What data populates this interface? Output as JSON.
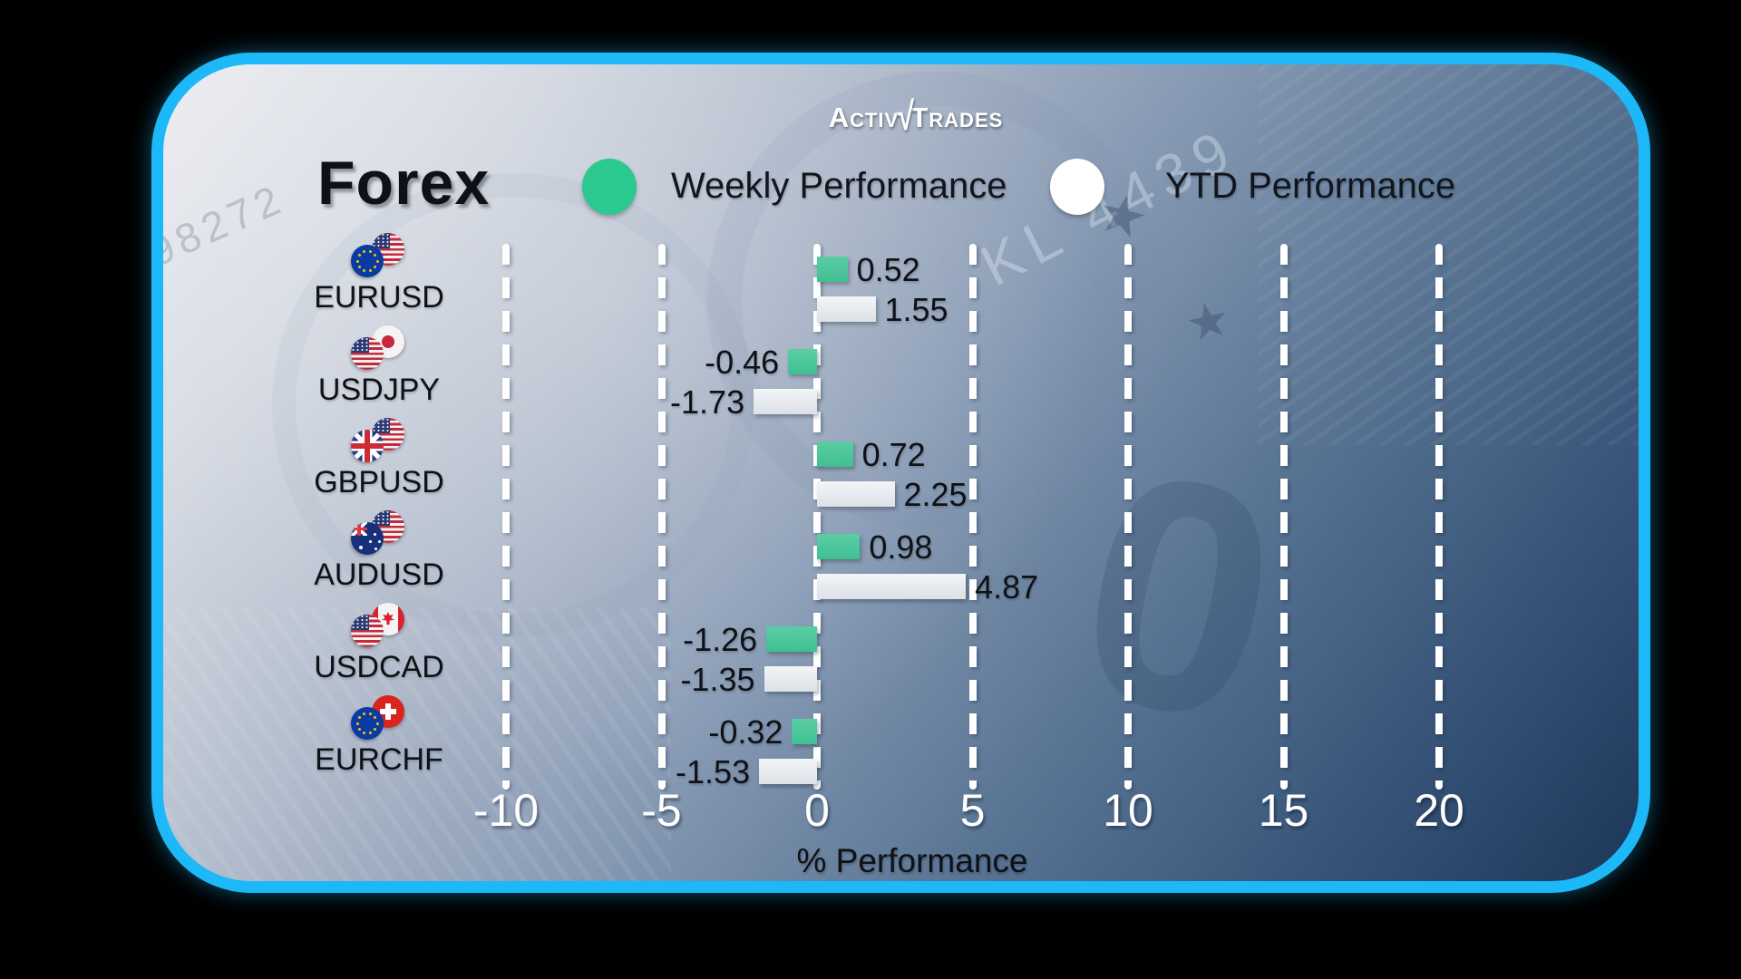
{
  "brand": {
    "part1": "Activ",
    "check": "√",
    "part2": "Trades"
  },
  "title": "Forex",
  "legend": [
    {
      "label": "Weekly Performance",
      "color": "#2BC98F"
    },
    {
      "label": "YTD Performance",
      "color": "#FFFFFF"
    }
  ],
  "chart_data": {
    "type": "bar",
    "orientation": "horizontal",
    "categories": [
      "EURUSD",
      "USDJPY",
      "GBPUSD",
      "AUDUSD",
      "USDCAD",
      "EURCHF"
    ],
    "series": [
      {
        "name": "Weekly Performance",
        "color": "#3FC092",
        "values": [
          0.52,
          -0.46,
          0.72,
          0.98,
          -1.26,
          -0.32
        ]
      },
      {
        "name": "YTD Performance",
        "color": "#E9EDF1",
        "values": [
          1.55,
          -1.73,
          2.25,
          4.87,
          -1.35,
          -1.53
        ]
      }
    ],
    "xlabel": "% Performance",
    "xlim": [
      -10,
      20
    ],
    "xticks": [
      -10,
      -5,
      0,
      5,
      10,
      15,
      20
    ],
    "grid": "dashed-vertical-white",
    "legend_position": "top"
  },
  "pairs": [
    {
      "symbol": "EURUSD",
      "base_flag": "eu",
      "quote_flag": "us"
    },
    {
      "symbol": "USDJPY",
      "base_flag": "us",
      "quote_flag": "jp"
    },
    {
      "symbol": "GBPUSD",
      "base_flag": "gb",
      "quote_flag": "us"
    },
    {
      "symbol": "AUDUSD",
      "base_flag": "au",
      "quote_flag": "us"
    },
    {
      "symbol": "USDCAD",
      "base_flag": "us",
      "quote_flag": "ca"
    },
    {
      "symbol": "EURCHF",
      "base_flag": "eu",
      "quote_flag": "ch"
    }
  ],
  "background_text": {
    "serial": "KL 4439",
    "serial2": "98272",
    "watermark": "0"
  },
  "colors": {
    "card_border": "#1CB8F7",
    "weekly_bar": "#3FC092",
    "ytd_bar": "#E9EDF1",
    "bg_light": "#EDEEF2",
    "bg_dark": "#1C3659",
    "text": "#0E1116",
    "axis_text": "#FFFFFF"
  }
}
